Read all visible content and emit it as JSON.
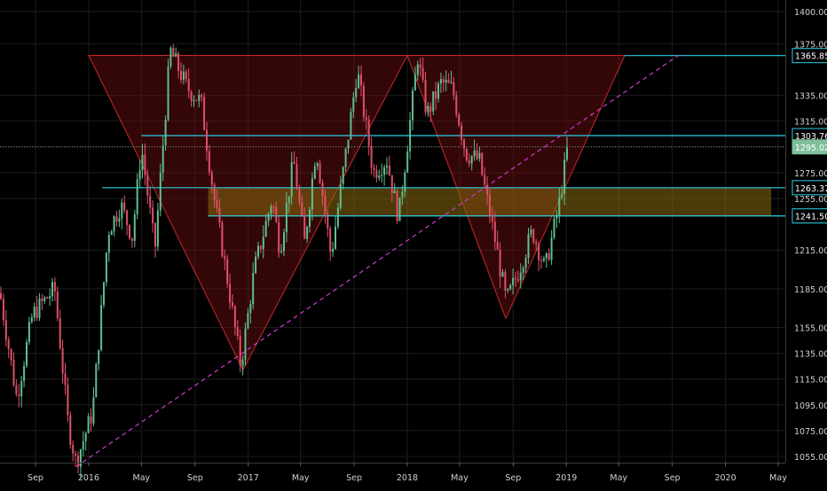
{
  "colors": {
    "background": "#000000",
    "grid": "#1c1c1c",
    "axis_text": "#d0d0d0",
    "up": "#5fbf8f",
    "down": "#e0506a",
    "triangle_fill": "#7a1010",
    "triangle_stroke": "#c62828",
    "level_line": "#29d0e6",
    "zone_fill": "#8a6a10",
    "trendline": "#d03ad0",
    "current_price_line": "#6a9a7a",
    "current_price_tag": "#7fbf9a"
  },
  "chart_data": {
    "type": "candlestick",
    "title": "",
    "xlabel": "",
    "ylabel": "",
    "ylim": [
      1040,
      1405
    ],
    "y_ticks": [
      "1400.00",
      "1375.00",
      "1335.00",
      "1315.00",
      "1295.00",
      "1275.00",
      "1255.00",
      "1215.00",
      "1185.00",
      "1155.00",
      "1135.00",
      "1115.00",
      "1095.00",
      "1075.00",
      "1055.00"
    ],
    "x_ticks": [
      {
        "label": "Sep",
        "date": "2015-09"
      },
      {
        "label": "2016",
        "date": "2016-01"
      },
      {
        "label": "May",
        "date": "2016-05"
      },
      {
        "label": "Sep",
        "date": "2016-09"
      },
      {
        "label": "2017",
        "date": "2017-01"
      },
      {
        "label": "May",
        "date": "2017-05"
      },
      {
        "label": "Sep",
        "date": "2017-09"
      },
      {
        "label": "2018",
        "date": "2018-01"
      },
      {
        "label": "May",
        "date": "2018-05"
      },
      {
        "label": "Sep",
        "date": "2018-09"
      },
      {
        "label": "2019",
        "date": "2019-01"
      },
      {
        "label": "May",
        "date": "2019-05"
      },
      {
        "label": "Sep",
        "date": "2019-09"
      },
      {
        "label": "2020",
        "date": "2020-01"
      },
      {
        "label": "May",
        "date": "2020-05"
      }
    ],
    "price_path": [
      [
        "2015-06-10",
        1185
      ],
      [
        "2015-07-20",
        1100
      ],
      [
        "2015-08-25",
        1165
      ],
      [
        "2015-10-15",
        1185
      ],
      [
        "2015-11-15",
        1080
      ],
      [
        "2015-12-03",
        1050
      ],
      [
        "2016-01-10",
        1090
      ],
      [
        "2016-02-15",
        1230
      ],
      [
        "2016-03-15",
        1250
      ],
      [
        "2016-04-10",
        1225
      ],
      [
        "2016-05-01",
        1295
      ],
      [
        "2016-06-01",
        1215
      ],
      [
        "2016-07-06",
        1370
      ],
      [
        "2016-08-15",
        1340
      ],
      [
        "2016-09-15",
        1330
      ],
      [
        "2016-10-15",
        1255
      ],
      [
        "2016-11-20",
        1180
      ],
      [
        "2016-12-15",
        1125
      ],
      [
        "2017-01-15",
        1200
      ],
      [
        "2017-02-25",
        1255
      ],
      [
        "2017-03-15",
        1215
      ],
      [
        "2017-04-15",
        1285
      ],
      [
        "2017-05-10",
        1220
      ],
      [
        "2017-06-06",
        1295
      ],
      [
        "2017-07-10",
        1210
      ],
      [
        "2017-08-15",
        1295
      ],
      [
        "2017-09-08",
        1355
      ],
      [
        "2017-10-15",
        1275
      ],
      [
        "2017-11-15",
        1285
      ],
      [
        "2017-12-12",
        1240
      ],
      [
        "2018-01-25",
        1365
      ],
      [
        "2018-02-15",
        1320
      ],
      [
        "2018-03-20",
        1345
      ],
      [
        "2018-04-15",
        1340
      ],
      [
        "2018-05-15",
        1290
      ],
      [
        "2018-06-15",
        1285
      ],
      [
        "2018-07-20",
        1225
      ],
      [
        "2018-08-16",
        1175
      ],
      [
        "2018-09-15",
        1200
      ],
      [
        "2018-10-15",
        1230
      ],
      [
        "2018-11-13",
        1200
      ],
      [
        "2018-12-15",
        1250
      ],
      [
        "2019-01-04",
        1295
      ]
    ],
    "levels": [
      {
        "label": "1365.85",
        "value": 1365.85,
        "from": "2019-05-15",
        "to": "2019-09-15"
      },
      {
        "label": "1303.76",
        "value": 1303.76,
        "from": "2016-05-01",
        "to": "2020-06-01"
      },
      {
        "label": "1263.37",
        "value": 1263.37,
        "from": "2016-02-01",
        "to": "2020-06-01"
      },
      {
        "label": "1241.50",
        "value": 1241.5,
        "from": "2016-10-01",
        "to": "2020-06-01"
      }
    ],
    "current_price": {
      "label": "1295.02",
      "value": 1295.02
    },
    "support_zone": {
      "low": 1241.5,
      "high": 1263.37,
      "from": "2016-10-01",
      "to": "2020-04-15"
    },
    "trendline": {
      "start": [
        "2015-12-03",
        1047
      ],
      "end": [
        "2019-09-15",
        1366
      ]
    },
    "triangles": [
      {
        "points": [
          [
            "2016-01-01",
            1366
          ],
          [
            "2018-01-01",
            1366
          ],
          [
            "2016-12-20",
            1122
          ]
        ]
      },
      {
        "points": [
          [
            "2018-01-01",
            1366
          ],
          [
            "2019-05-15",
            1366
          ],
          [
            "2018-08-15",
            1162
          ]
        ]
      }
    ]
  }
}
